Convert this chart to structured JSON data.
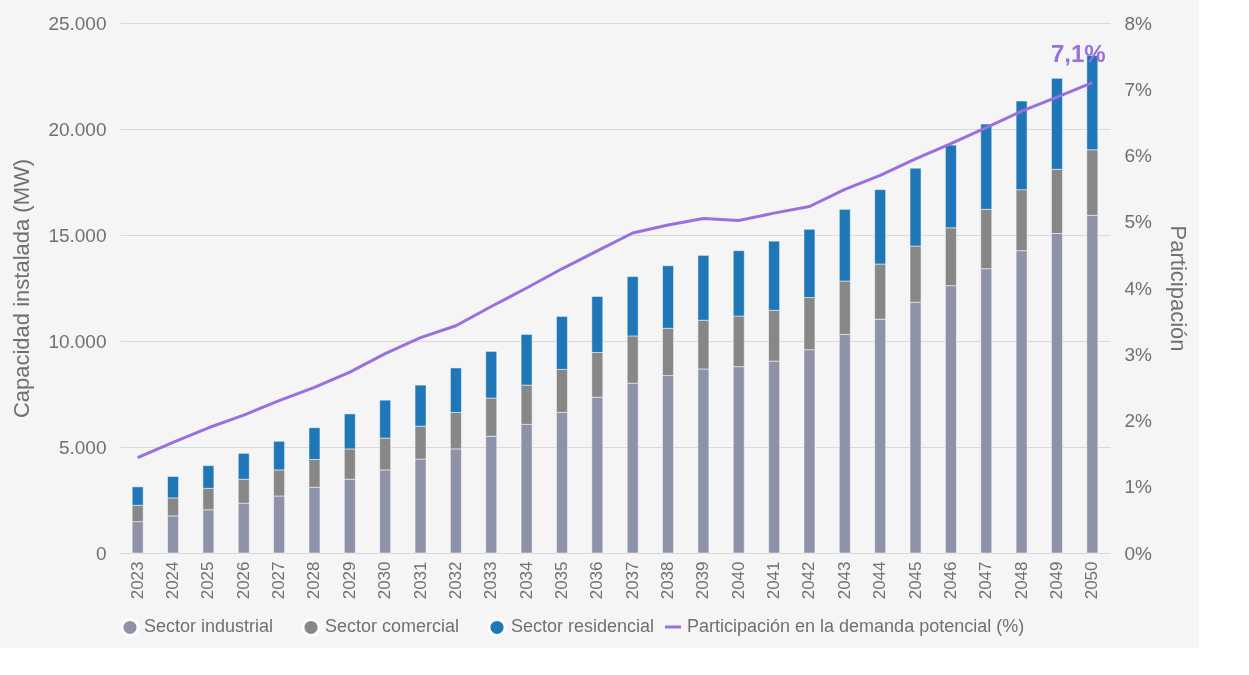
{
  "chart_data": {
    "type": "bar",
    "stacked": true,
    "categories": [
      "2023",
      "2024",
      "2025",
      "2026",
      "2027",
      "2028",
      "2029",
      "2030",
      "2031",
      "2032",
      "2033",
      "2034",
      "2035",
      "2036",
      "2037",
      "2038",
      "2039",
      "2040",
      "2041",
      "2042",
      "2043",
      "2044",
      "2045",
      "2046",
      "2047",
      "2048",
      "2049",
      "2050"
    ],
    "ylabel": "Capacidad instalada (MW)",
    "y2label": "Participación",
    "ylim": [
      0,
      25000
    ],
    "yticks": [
      0,
      {
        "value": 5000,
        "label": "5.000"
      },
      {
        "value": 10000,
        "label": "10.000"
      },
      {
        "value": 15000,
        "label": "15.000"
      },
      {
        "value": 20000,
        "label": "20.000"
      },
      {
        "value": 25000,
        "label": "25.000"
      }
    ],
    "y2lim": [
      0,
      8
    ],
    "y2ticks": [
      {
        "value": 0,
        "label": "0%"
      },
      {
        "value": 1,
        "label": "1%"
      },
      {
        "value": 2,
        "label": "2%"
      },
      {
        "value": 3,
        "label": "3%"
      },
      {
        "value": 4,
        "label": "4%"
      },
      {
        "value": 5,
        "label": "5%"
      },
      {
        "value": 6,
        "label": "6%"
      },
      {
        "value": 7,
        "label": "7%"
      },
      {
        "value": 8,
        "label": "8%"
      }
    ],
    "grid": "y",
    "legend": "bottom",
    "series": [
      {
        "name": "Sector industrial",
        "color": "#8e92a8",
        "values": [
          1480,
          1750,
          2040,
          2350,
          2690,
          3100,
          3480,
          3920,
          4430,
          4910,
          5510,
          6070,
          6630,
          7350,
          8010,
          8370,
          8680,
          8790,
          9050,
          9590,
          10310,
          11030,
          11830,
          12610,
          13410,
          14260,
          15070,
          15930
        ]
      },
      {
        "name": "Sector comercial",
        "color": "#878787",
        "values": [
          770,
          850,
          1010,
          1130,
          1230,
          1310,
          1430,
          1500,
          1550,
          1720,
          1800,
          1850,
          2030,
          2110,
          2230,
          2230,
          2300,
          2390,
          2400,
          2460,
          2520,
          2600,
          2650,
          2730,
          2800,
          2880,
          3030,
          3090
        ]
      },
      {
        "name": "Sector residencial",
        "color": "#1f77b8",
        "values": [
          870,
          1010,
          1070,
          1220,
          1350,
          1500,
          1650,
          1790,
          1940,
          2100,
          2200,
          2390,
          2500,
          2640,
          2800,
          2950,
          3060,
          3080,
          3260,
          3220,
          3380,
          3510,
          3670,
          3900,
          4020,
          4180,
          4290,
          4450
        ]
      },
      {
        "name": "Participación en la demanda potencial (%)",
        "type": "line",
        "axis": "y2",
        "color": "#9a6fe0",
        "values": [
          1.44,
          1.67,
          1.89,
          2.08,
          2.3,
          2.5,
          2.73,
          3.01,
          3.25,
          3.43,
          3.72,
          4.0,
          4.29,
          4.56,
          4.83,
          4.95,
          5.05,
          5.02,
          5.13,
          5.23,
          5.49,
          5.7,
          5.95,
          6.18,
          6.42,
          6.67,
          6.88,
          7.1
        ],
        "value_labels": [
          null,
          null,
          null,
          null,
          null,
          null,
          null,
          null,
          null,
          null,
          null,
          null,
          null,
          null,
          null,
          null,
          null,
          null,
          null,
          null,
          null,
          null,
          null,
          null,
          null,
          null,
          null,
          "7,1%"
        ]
      }
    ]
  }
}
